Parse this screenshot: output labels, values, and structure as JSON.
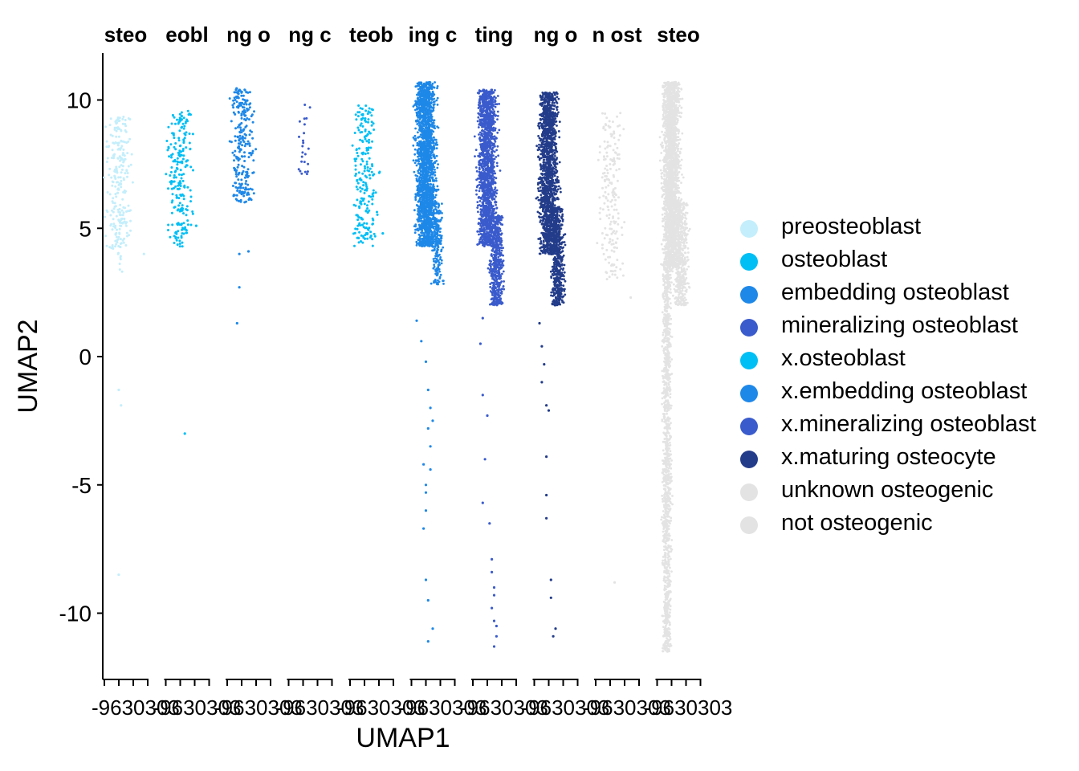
{
  "chart_data": {
    "type": "scatter",
    "xlabel": "UMAP1",
    "ylabel": "UMAP2",
    "ylim": [
      -12.5,
      11.8
    ],
    "yticks": [
      -10,
      -5,
      0,
      5,
      10
    ],
    "panel_titles": [
      "steo",
      "eobl",
      "ng o",
      "ng c",
      "teob",
      "ing c",
      "ting",
      "ng o",
      "n ost",
      "steo"
    ],
    "panel_tick_labels": "-9630303",
    "legend_position": "right",
    "legend": [
      {
        "label": "preosteoblast",
        "color": "#C4EEFB"
      },
      {
        "label": "osteoblast",
        "color": "#00BFF5"
      },
      {
        "label": "embedding osteoblast",
        "color": "#1E88E8"
      },
      {
        "label": "mineralizing osteoblast",
        "color": "#3A5BCC"
      },
      {
        "label": "x.osteoblast",
        "color": "#00BFF5"
      },
      {
        "label": "x.embedding osteoblast",
        "color": "#1E88E8"
      },
      {
        "label": "x.mineralizing osteoblast",
        "color": "#3A5BCC"
      },
      {
        "label": "x.maturing osteocyte",
        "color": "#233C8A"
      },
      {
        "label": "unknown osteogenic",
        "color": "#E3E3E3"
      },
      {
        "label": "not osteogenic",
        "color": "#E3E3E3"
      }
    ],
    "panels": [
      {
        "series": "preosteoblast",
        "color": "#C4EEFB",
        "count": 260,
        "clusters": [
          {
            "y0": 4.2,
            "y1": 9.4,
            "w": 0.85,
            "n": 240
          },
          {
            "y0": 3.3,
            "y1": 4.8,
            "w": 0.3,
            "n": 12
          }
        ],
        "outliers": [
          [
            0.35,
            -1.3
          ],
          [
            0.4,
            -1.9
          ],
          [
            0.35,
            -8.5
          ],
          [
            0.9,
            4.0
          ]
        ]
      },
      {
        "series": "osteoblast",
        "color": "#00BFF5",
        "count": 230,
        "clusters": [
          {
            "y0": 4.2,
            "y1": 9.6,
            "w": 0.8,
            "n": 220
          }
        ],
        "outliers": [
          [
            0.45,
            -3.0
          ],
          [
            0.7,
            5.1
          ]
        ]
      },
      {
        "series": "embedding osteoblast",
        "color": "#1E88E8",
        "count": 260,
        "clusters": [
          {
            "y0": 6.0,
            "y1": 10.5,
            "w": 0.8,
            "n": 250
          }
        ],
        "outliers": [
          [
            0.3,
            4.0
          ],
          [
            0.3,
            2.7
          ],
          [
            0.25,
            1.3
          ],
          [
            0.5,
            4.1
          ]
        ]
      },
      {
        "series": "mineralizing osteoblast",
        "color": "#3A5BCC",
        "count": 24,
        "clusters": [
          {
            "y0": 6.6,
            "y1": 9.9,
            "w": 0.5,
            "n": 24
          }
        ],
        "outliers": []
      },
      {
        "series": "x.osteoblast",
        "color": "#00BFF5",
        "count": 230,
        "clusters": [
          {
            "y0": 4.3,
            "y1": 9.8,
            "w": 0.85,
            "n": 220
          }
        ],
        "outliers": [
          [
            0.75,
            4.8
          ]
        ]
      },
      {
        "series": "x.embedding osteoblast",
        "color": "#1E88E8",
        "count": 2200,
        "clusters": [
          {
            "y0": 4.3,
            "y1": 10.7,
            "w": 0.7,
            "n": 1900
          },
          {
            "y0": 2.8,
            "y1": 6.0,
            "w": 0.35,
            "n": 200,
            "off": 0.6
          }
        ],
        "outliers": [
          [
            0.15,
            1.4
          ],
          [
            0.25,
            0.6
          ],
          [
            0.35,
            -0.2
          ],
          [
            0.4,
            -1.3
          ],
          [
            0.45,
            -2.0
          ],
          [
            0.4,
            -2.8
          ],
          [
            0.45,
            -3.5
          ],
          [
            0.3,
            -4.2
          ],
          [
            0.35,
            -5.0
          ],
          [
            0.35,
            -6.0
          ],
          [
            0.3,
            -6.7
          ],
          [
            0.35,
            -8.7
          ],
          [
            0.4,
            -9.5
          ],
          [
            0.5,
            -10.6
          ],
          [
            0.4,
            -11.1
          ],
          [
            0.5,
            -2.5
          ],
          [
            0.35,
            -5.3
          ],
          [
            0.45,
            -4.4
          ]
        ]
      },
      {
        "series": "x.mineralizing osteoblast",
        "color": "#3A5BCC",
        "count": 2000,
        "clusters": [
          {
            "y0": 4.3,
            "y1": 10.4,
            "w": 0.65,
            "n": 1500
          },
          {
            "y0": 2.0,
            "y1": 5.5,
            "w": 0.45,
            "n": 500,
            "off": 0.55
          }
        ],
        "outliers": [
          [
            0.25,
            1.5
          ],
          [
            0.2,
            0.5
          ],
          [
            0.25,
            -1.5
          ],
          [
            0.35,
            -2.3
          ],
          [
            0.3,
            -4.0
          ],
          [
            0.25,
            -5.7
          ],
          [
            0.4,
            -6.5
          ],
          [
            0.45,
            -8.4
          ],
          [
            0.5,
            -9.0
          ],
          [
            0.45,
            -9.8
          ],
          [
            0.5,
            -10.3
          ],
          [
            0.55,
            -10.9
          ],
          [
            0.5,
            -11.3
          ],
          [
            0.5,
            -9.3
          ],
          [
            0.55,
            -10.5
          ],
          [
            0.45,
            -7.9
          ]
        ]
      },
      {
        "series": "x.maturing osteocyte",
        "color": "#233C8A",
        "count": 2000,
        "clusters": [
          {
            "y0": 4.0,
            "y1": 10.3,
            "w": 0.65,
            "n": 1500
          },
          {
            "y0": 2.0,
            "y1": 5.8,
            "w": 0.45,
            "n": 500,
            "off": 0.55
          }
        ],
        "outliers": [
          [
            0.15,
            1.3
          ],
          [
            0.2,
            0.4
          ],
          [
            0.25,
            -0.3
          ],
          [
            0.3,
            -1.9
          ],
          [
            0.35,
            -2.1
          ],
          [
            0.3,
            -3.9
          ],
          [
            0.3,
            -5.4
          ],
          [
            0.3,
            -6.3
          ],
          [
            0.4,
            -8.7
          ],
          [
            0.4,
            -9.4
          ],
          [
            0.5,
            -10.6
          ],
          [
            0.45,
            -10.9
          ],
          [
            0.2,
            -1.0
          ]
        ]
      },
      {
        "series": "unknown osteogenic",
        "color": "#E3E3E3",
        "count": 200,
        "clusters": [
          {
            "y0": 3.0,
            "y1": 9.5,
            "w": 0.8,
            "n": 190
          }
        ],
        "outliers": [
          [
            0.45,
            -8.8
          ],
          [
            0.8,
            2.3
          ]
        ]
      },
      {
        "series": "not osteogenic",
        "color": "#E3E3E3",
        "count": 4000,
        "clusters": [
          {
            "y0": 3.5,
            "y1": 10.7,
            "w": 0.6,
            "n": 2300
          },
          {
            "y0": 2.0,
            "y1": 6.0,
            "w": 0.5,
            "n": 500,
            "off": 0.55
          },
          {
            "y0": -11.5,
            "y1": 3.5,
            "w": 0.3,
            "n": 1200,
            "off": 0.25
          }
        ],
        "outliers": []
      }
    ]
  }
}
